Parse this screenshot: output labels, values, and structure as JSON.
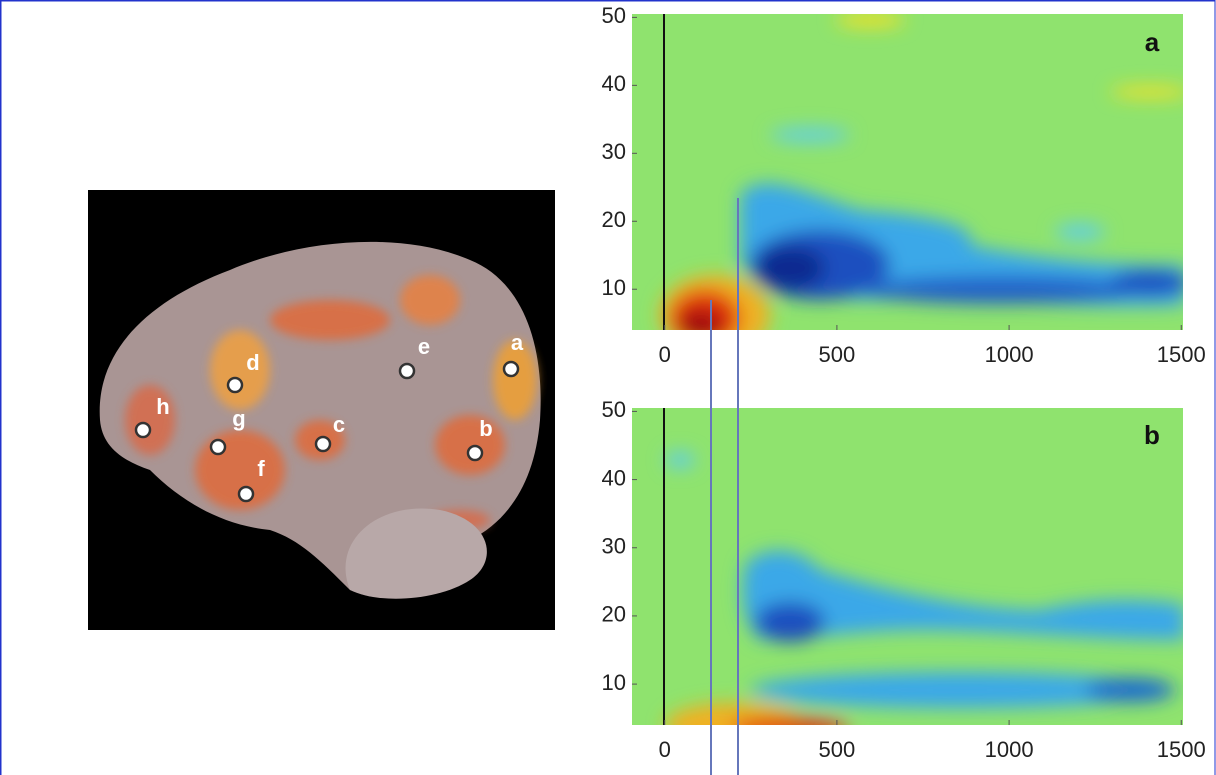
{
  "brain": {
    "labels": [
      "a",
      "b",
      "c",
      "d",
      "e",
      "f",
      "g",
      "h"
    ]
  },
  "panels": [
    {
      "label": "a",
      "xlim": [
        -95,
        1505
      ],
      "ylim": [
        4,
        50.5
      ],
      "xticks": [
        0,
        500,
        1000,
        1500
      ],
      "yticks": [
        10,
        20,
        30,
        40,
        50
      ]
    },
    {
      "label": "b",
      "xlim": [
        -95,
        1505
      ],
      "ylim": [
        4,
        50.5
      ],
      "xticks": [
        0,
        500,
        1000,
        1500
      ],
      "yticks": [
        10,
        20,
        30,
        40,
        50
      ]
    }
  ]
}
